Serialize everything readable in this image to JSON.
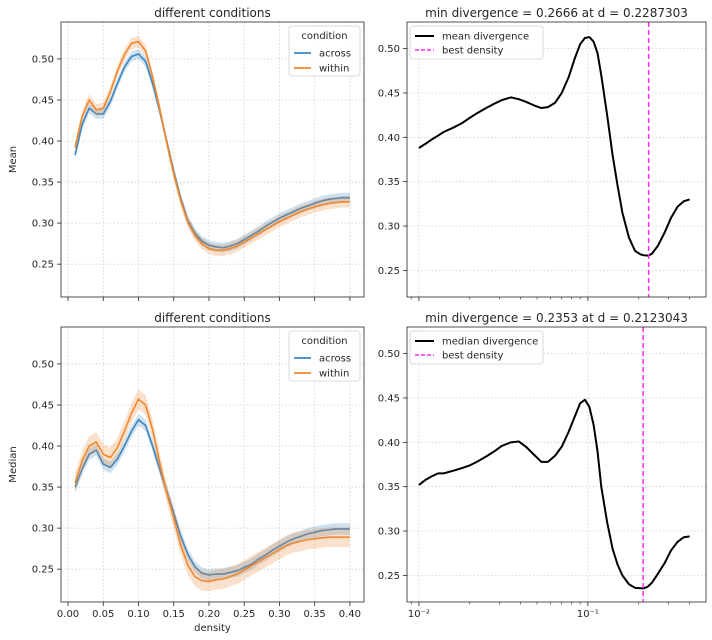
{
  "figure": {
    "background": "#ffffff",
    "grid_color": "#cfcfcf"
  },
  "colors": {
    "across": "#3a86c4",
    "within": "#f0882e",
    "divergence": "#000000",
    "best_density": "#ff2bf0"
  },
  "chart_data": [
    {
      "id": "mean_conditions",
      "type": "line",
      "title": "different conditions",
      "ylabel": "Mean",
      "xlabel": "",
      "xlim": [
        -0.01,
        0.42
      ],
      "ylim": [
        0.21,
        0.545
      ],
      "xticks": [
        0.0,
        0.05,
        0.1,
        0.15,
        0.2,
        0.25,
        0.3,
        0.35,
        0.4
      ],
      "xtick_labels": [],
      "yticks": [
        0.25,
        0.3,
        0.35,
        0.4,
        0.45,
        0.5
      ],
      "ytick_labels": [
        "0.25",
        "0.30",
        "0.35",
        "0.40",
        "0.45",
        "0.50"
      ],
      "grid": true,
      "legend": {
        "title": "condition",
        "placement": "top-right",
        "entries": [
          "across",
          "within"
        ]
      },
      "x": [
        0.01,
        0.02,
        0.03,
        0.04,
        0.05,
        0.06,
        0.07,
        0.08,
        0.09,
        0.1,
        0.11,
        0.12,
        0.13,
        0.14,
        0.15,
        0.16,
        0.17,
        0.18,
        0.19,
        0.2,
        0.21,
        0.22,
        0.23,
        0.24,
        0.25,
        0.26,
        0.27,
        0.28,
        0.29,
        0.3,
        0.31,
        0.32,
        0.33,
        0.34,
        0.35,
        0.36,
        0.37,
        0.38,
        0.39,
        0.4
      ],
      "series": [
        {
          "name": "across",
          "values": [
            0.383,
            0.42,
            0.44,
            0.433,
            0.433,
            0.448,
            0.47,
            0.49,
            0.503,
            0.506,
            0.497,
            0.47,
            0.437,
            0.4,
            0.363,
            0.33,
            0.303,
            0.288,
            0.278,
            0.273,
            0.271,
            0.27,
            0.272,
            0.275,
            0.28,
            0.285,
            0.29,
            0.296,
            0.301,
            0.306,
            0.31,
            0.314,
            0.318,
            0.321,
            0.324,
            0.327,
            0.329,
            0.33,
            0.331,
            0.331
          ],
          "band": 0.006
        },
        {
          "name": "within",
          "values": [
            0.392,
            0.43,
            0.45,
            0.438,
            0.44,
            0.46,
            0.485,
            0.505,
            0.519,
            0.521,
            0.51,
            0.478,
            0.44,
            0.398,
            0.36,
            0.327,
            0.301,
            0.285,
            0.275,
            0.269,
            0.267,
            0.267,
            0.269,
            0.272,
            0.277,
            0.282,
            0.287,
            0.292,
            0.297,
            0.302,
            0.306,
            0.31,
            0.314,
            0.317,
            0.32,
            0.322,
            0.324,
            0.325,
            0.326,
            0.326
          ],
          "band": 0.007
        }
      ]
    },
    {
      "id": "mean_divergence",
      "type": "line",
      "title": "min divergence = 0.2666 at d = 0.2287303",
      "ylabel": "",
      "xlabel": "",
      "xscale": "log",
      "xlim": [
        0.0085,
        0.5
      ],
      "ylim": [
        0.22,
        0.53
      ],
      "xticks": [
        0.01,
        0.1
      ],
      "xtick_labels": [],
      "yticks": [
        0.25,
        0.3,
        0.35,
        0.4,
        0.45,
        0.5
      ],
      "ytick_labels": [
        "0.25",
        "0.30",
        "0.35",
        "0.40",
        "0.45",
        "0.50"
      ],
      "grid": true,
      "legend": {
        "placement": "top-left",
        "entries": [
          "mean divergence",
          "best density"
        ]
      },
      "x": [
        0.01,
        0.011,
        0.012,
        0.013,
        0.014,
        0.016,
        0.018,
        0.02,
        0.022,
        0.025,
        0.028,
        0.031,
        0.035,
        0.039,
        0.043,
        0.048,
        0.053,
        0.058,
        0.064,
        0.07,
        0.077,
        0.084,
        0.09,
        0.096,
        0.102,
        0.108,
        0.114,
        0.12,
        0.13,
        0.14,
        0.15,
        0.16,
        0.175,
        0.19,
        0.205,
        0.215,
        0.2287303,
        0.24,
        0.26,
        0.285,
        0.31,
        0.34,
        0.37,
        0.4
      ],
      "series": [
        {
          "name": "mean divergence",
          "values": [
            0.388,
            0.393,
            0.398,
            0.402,
            0.406,
            0.411,
            0.416,
            0.422,
            0.427,
            0.433,
            0.438,
            0.442,
            0.445,
            0.443,
            0.44,
            0.436,
            0.433,
            0.434,
            0.439,
            0.45,
            0.468,
            0.49,
            0.505,
            0.512,
            0.513,
            0.508,
            0.495,
            0.47,
            0.425,
            0.38,
            0.345,
            0.315,
            0.287,
            0.272,
            0.268,
            0.267,
            0.2666,
            0.269,
            0.278,
            0.293,
            0.309,
            0.322,
            0.328,
            0.33
          ]
        }
      ],
      "best_density": 0.2287303
    },
    {
      "id": "median_conditions",
      "type": "line",
      "title": "different conditions",
      "ylabel": "Median",
      "xlabel": "density",
      "xlim": [
        -0.01,
        0.42
      ],
      "ylim": [
        0.21,
        0.545
      ],
      "xticks": [
        0.0,
        0.05,
        0.1,
        0.15,
        0.2,
        0.25,
        0.3,
        0.35,
        0.4
      ],
      "xtick_labels": [
        "0.00",
        "0.05",
        "0.10",
        "0.15",
        "0.20",
        "0.25",
        "0.30",
        "0.35",
        "0.40"
      ],
      "yticks": [
        0.25,
        0.3,
        0.35,
        0.4,
        0.45,
        0.5
      ],
      "ytick_labels": [
        "0.25",
        "0.30",
        "0.35",
        "0.40",
        "0.45",
        "0.50"
      ],
      "grid": true,
      "legend": {
        "title": "condition",
        "placement": "top-right",
        "entries": [
          "across",
          "within"
        ]
      },
      "x": [
        0.01,
        0.02,
        0.03,
        0.04,
        0.05,
        0.06,
        0.07,
        0.08,
        0.09,
        0.1,
        0.11,
        0.12,
        0.13,
        0.14,
        0.15,
        0.16,
        0.17,
        0.18,
        0.19,
        0.2,
        0.21,
        0.22,
        0.23,
        0.24,
        0.25,
        0.26,
        0.27,
        0.28,
        0.29,
        0.3,
        0.31,
        0.32,
        0.33,
        0.34,
        0.35,
        0.36,
        0.37,
        0.38,
        0.39,
        0.4
      ],
      "series": [
        {
          "name": "across",
          "values": [
            0.35,
            0.372,
            0.39,
            0.395,
            0.378,
            0.374,
            0.384,
            0.4,
            0.418,
            0.432,
            0.425,
            0.4,
            0.372,
            0.345,
            0.318,
            0.29,
            0.268,
            0.253,
            0.245,
            0.243,
            0.244,
            0.244,
            0.246,
            0.248,
            0.252,
            0.256,
            0.262,
            0.267,
            0.273,
            0.278,
            0.283,
            0.287,
            0.29,
            0.293,
            0.295,
            0.297,
            0.298,
            0.299,
            0.299,
            0.299
          ],
          "band": 0.007
        },
        {
          "name": "within",
          "values": [
            0.355,
            0.382,
            0.4,
            0.405,
            0.39,
            0.386,
            0.398,
            0.418,
            0.44,
            0.457,
            0.45,
            0.42,
            0.38,
            0.343,
            0.312,
            0.279,
            0.255,
            0.241,
            0.236,
            0.235,
            0.237,
            0.238,
            0.241,
            0.244,
            0.249,
            0.254,
            0.259,
            0.264,
            0.269,
            0.274,
            0.279,
            0.282,
            0.284,
            0.286,
            0.287,
            0.288,
            0.289,
            0.289,
            0.289,
            0.289
          ],
          "band": 0.012
        }
      ]
    },
    {
      "id": "median_divergence",
      "type": "line",
      "title": "min divergence = 0.2353 at d = 0.2123043",
      "ylabel": "",
      "xlabel": "",
      "xscale": "log",
      "xlim": [
        0.0085,
        0.5
      ],
      "ylim": [
        0.22,
        0.53
      ],
      "xticks": [
        0.01,
        0.1
      ],
      "xtick_labels": [
        "10⁻²",
        "10⁻¹"
      ],
      "yticks": [
        0.25,
        0.3,
        0.35,
        0.4,
        0.45,
        0.5
      ],
      "ytick_labels": [
        "0.25",
        "0.30",
        "0.35",
        "0.40",
        "0.45",
        "0.50"
      ],
      "grid": true,
      "legend": {
        "placement": "top-left",
        "entries": [
          "median divergence",
          "best density"
        ]
      },
      "x": [
        0.01,
        0.011,
        0.012,
        0.013,
        0.014,
        0.016,
        0.018,
        0.02,
        0.022,
        0.025,
        0.028,
        0.031,
        0.035,
        0.039,
        0.043,
        0.048,
        0.053,
        0.058,
        0.064,
        0.07,
        0.077,
        0.084,
        0.09,
        0.096,
        0.102,
        0.108,
        0.114,
        0.12,
        0.13,
        0.14,
        0.15,
        0.16,
        0.175,
        0.19,
        0.2123043,
        0.225,
        0.24,
        0.26,
        0.285,
        0.31,
        0.34,
        0.37,
        0.4
      ],
      "series": [
        {
          "name": "median divergence",
          "values": [
            0.352,
            0.358,
            0.362,
            0.365,
            0.365,
            0.368,
            0.371,
            0.374,
            0.378,
            0.384,
            0.39,
            0.396,
            0.4,
            0.401,
            0.395,
            0.386,
            0.378,
            0.378,
            0.385,
            0.395,
            0.412,
            0.43,
            0.444,
            0.448,
            0.44,
            0.42,
            0.39,
            0.35,
            0.31,
            0.28,
            0.262,
            0.25,
            0.24,
            0.236,
            0.2353,
            0.237,
            0.242,
            0.252,
            0.264,
            0.278,
            0.288,
            0.293,
            0.294
          ]
        }
      ],
      "best_density": 0.2123043
    }
  ]
}
